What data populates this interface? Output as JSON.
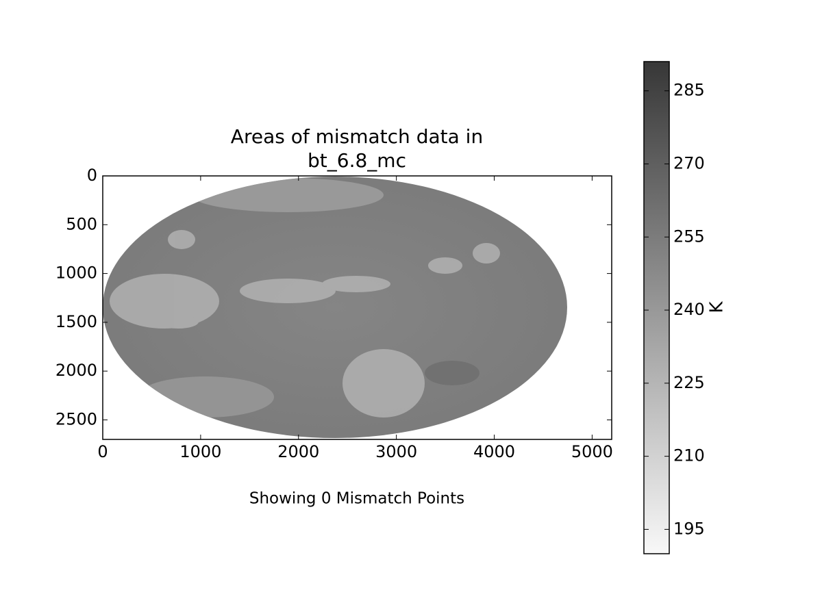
{
  "chart_data": {
    "type": "image",
    "title": [
      "Areas of mismatch data in",
      "bt_6.8_mc"
    ],
    "xlabel": "Showing 0 Mismatch Points",
    "xlim": [
      0,
      5200
    ],
    "xticks": [
      0,
      1000,
      2000,
      3000,
      4000,
      5000
    ],
    "ylim": [
      2700,
      0
    ],
    "yticks": [
      0,
      500,
      1000,
      1500,
      2000,
      2500
    ],
    "colorbar": {
      "label": "K",
      "lim": [
        190,
        291
      ],
      "ticks": [
        195,
        210,
        225,
        240,
        255,
        270,
        285
      ],
      "colors": [
        "#f8f8f8",
        "#373737"
      ]
    }
  }
}
